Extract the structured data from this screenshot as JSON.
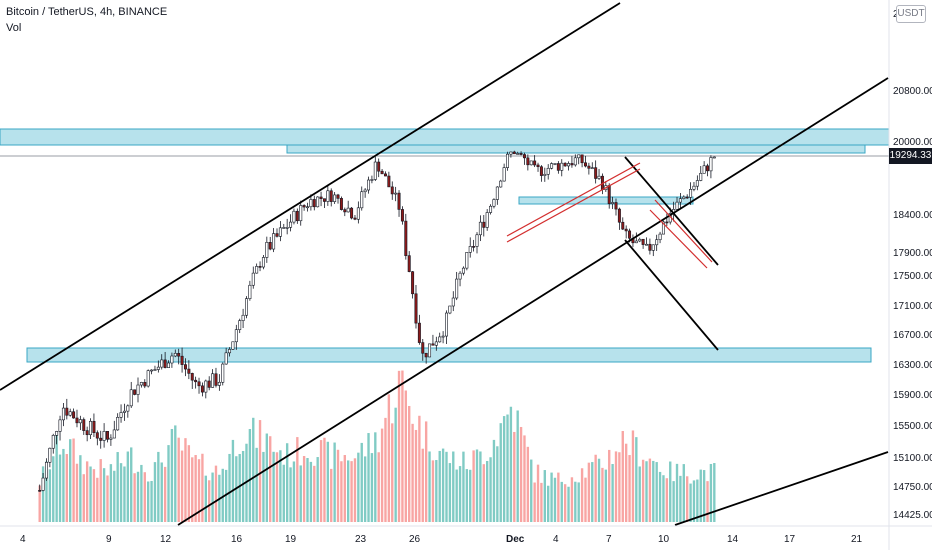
{
  "header": {
    "title": "Bitcoin / TetherUS, 4h, BINANCE",
    "subtitle": "Vol",
    "currency_badge": "USDT"
  },
  "price_label": "19294.33",
  "colors": {
    "up": "#26a69a",
    "down": "#ef5350",
    "vol_up": "#80cbc4",
    "vol_down": "#f8a5a3",
    "zone": "#9fd8e6",
    "trend": "#000000",
    "red_channel": "#d32f2f"
  },
  "chart_data": {
    "type": "candlestick",
    "y_axis_ticks": [
      "2",
      "20800.00",
      "20000.00",
      "19294.33",
      "18400.00",
      "17900.00",
      "17500.00",
      "17100.00",
      "16700.00",
      "16300.00",
      "15900.00",
      "15500.00",
      "15100.00",
      "14750.00",
      "14425.00"
    ],
    "x_axis_ticks": [
      "4",
      "9",
      "12",
      "16",
      "19",
      "23",
      "26",
      "Dec",
      "4",
      "7",
      "10",
      "14",
      "17",
      "21"
    ],
    "last_price": 19294.33,
    "ylim": [
      14300,
      21200
    ],
    "approx_closes": [
      14700,
      15750,
      15500,
      15300,
      15900,
      16200,
      16450,
      16000,
      16100,
      17000,
      17900,
      18250,
      18600,
      18700,
      18400,
      19200,
      18500,
      16400,
      16800,
      17800,
      18500,
      19500,
      19050,
      19150,
      19250,
      18900,
      18100,
      17900,
      18400,
      18800,
      19294
    ],
    "approx_volume": [
      0.25,
      0.5,
      0.35,
      0.3,
      0.4,
      0.3,
      0.5,
      0.35,
      0.3,
      0.55,
      0.5,
      0.4,
      0.45,
      0.4,
      0.4,
      0.5,
      0.85,
      0.55,
      0.4,
      0.35,
      0.45,
      0.7,
      0.3,
      0.25,
      0.3,
      0.35,
      0.5,
      0.4,
      0.3,
      0.3,
      0.3
    ]
  }
}
